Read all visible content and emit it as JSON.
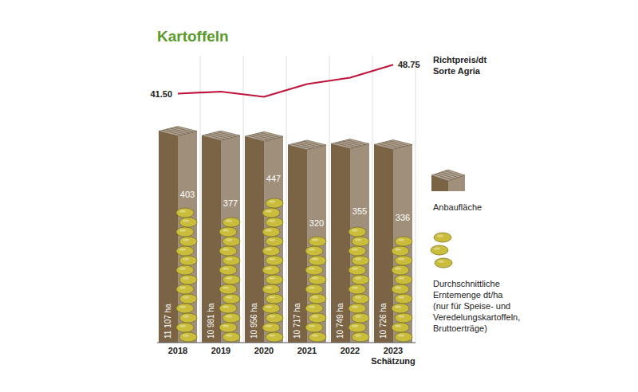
{
  "chart_data": [
    {
      "type": "line",
      "title": "Kartoffeln",
      "categories": [
        "2018",
        "2019",
        "2020",
        "2021",
        "2022",
        "2023 Schätzung"
      ],
      "series": [
        {
          "name": "Richtpreis/dt Sorte Agria",
          "color": "#c0143c",
          "values": [
            41.5,
            42.0,
            40.7,
            43.9,
            45.5,
            48.75
          ],
          "value_labels": [
            "41.50",
            null,
            null,
            null,
            null,
            "48.75"
          ]
        }
      ],
      "ylim": [
        36,
        52
      ],
      "yticks": [],
      "tick_labels": false,
      "grid": false,
      "data_labels": true
    },
    {
      "type": "bar",
      "categories": [
        "2018",
        "2019",
        "2020",
        "2021",
        "2022",
        "2023 Schätzung"
      ],
      "series": [
        {
          "name": "Anbaufläche",
          "color": "#7b6446",
          "values": [
            11107,
            10981,
            10956,
            10717,
            10749,
            10726
          ],
          "value_labels": [
            "11 107 ha",
            "10 981 ha",
            "10 956 ha",
            "10 717 ha",
            "10 749 ha",
            "10 726 ha"
          ]
        },
        {
          "name": "Durchschnittliche Erntemenge dt/ha (nur für Speise- und Veredelungskartoffeln, Bruttoerträge)",
          "type": "pictogram",
          "axis": "y2",
          "color": "#cbbd3c",
          "values": [
            403,
            377,
            447,
            320,
            355,
            336
          ]
        }
      ],
      "ylim": [
        5000,
        11300
      ],
      "y2lim": [
        0,
        640
      ],
      "yticks": [],
      "y2ticks": [],
      "tick_labels": "x",
      "grid": true,
      "data_labels": true,
      "legend": "right"
    }
  ]
}
